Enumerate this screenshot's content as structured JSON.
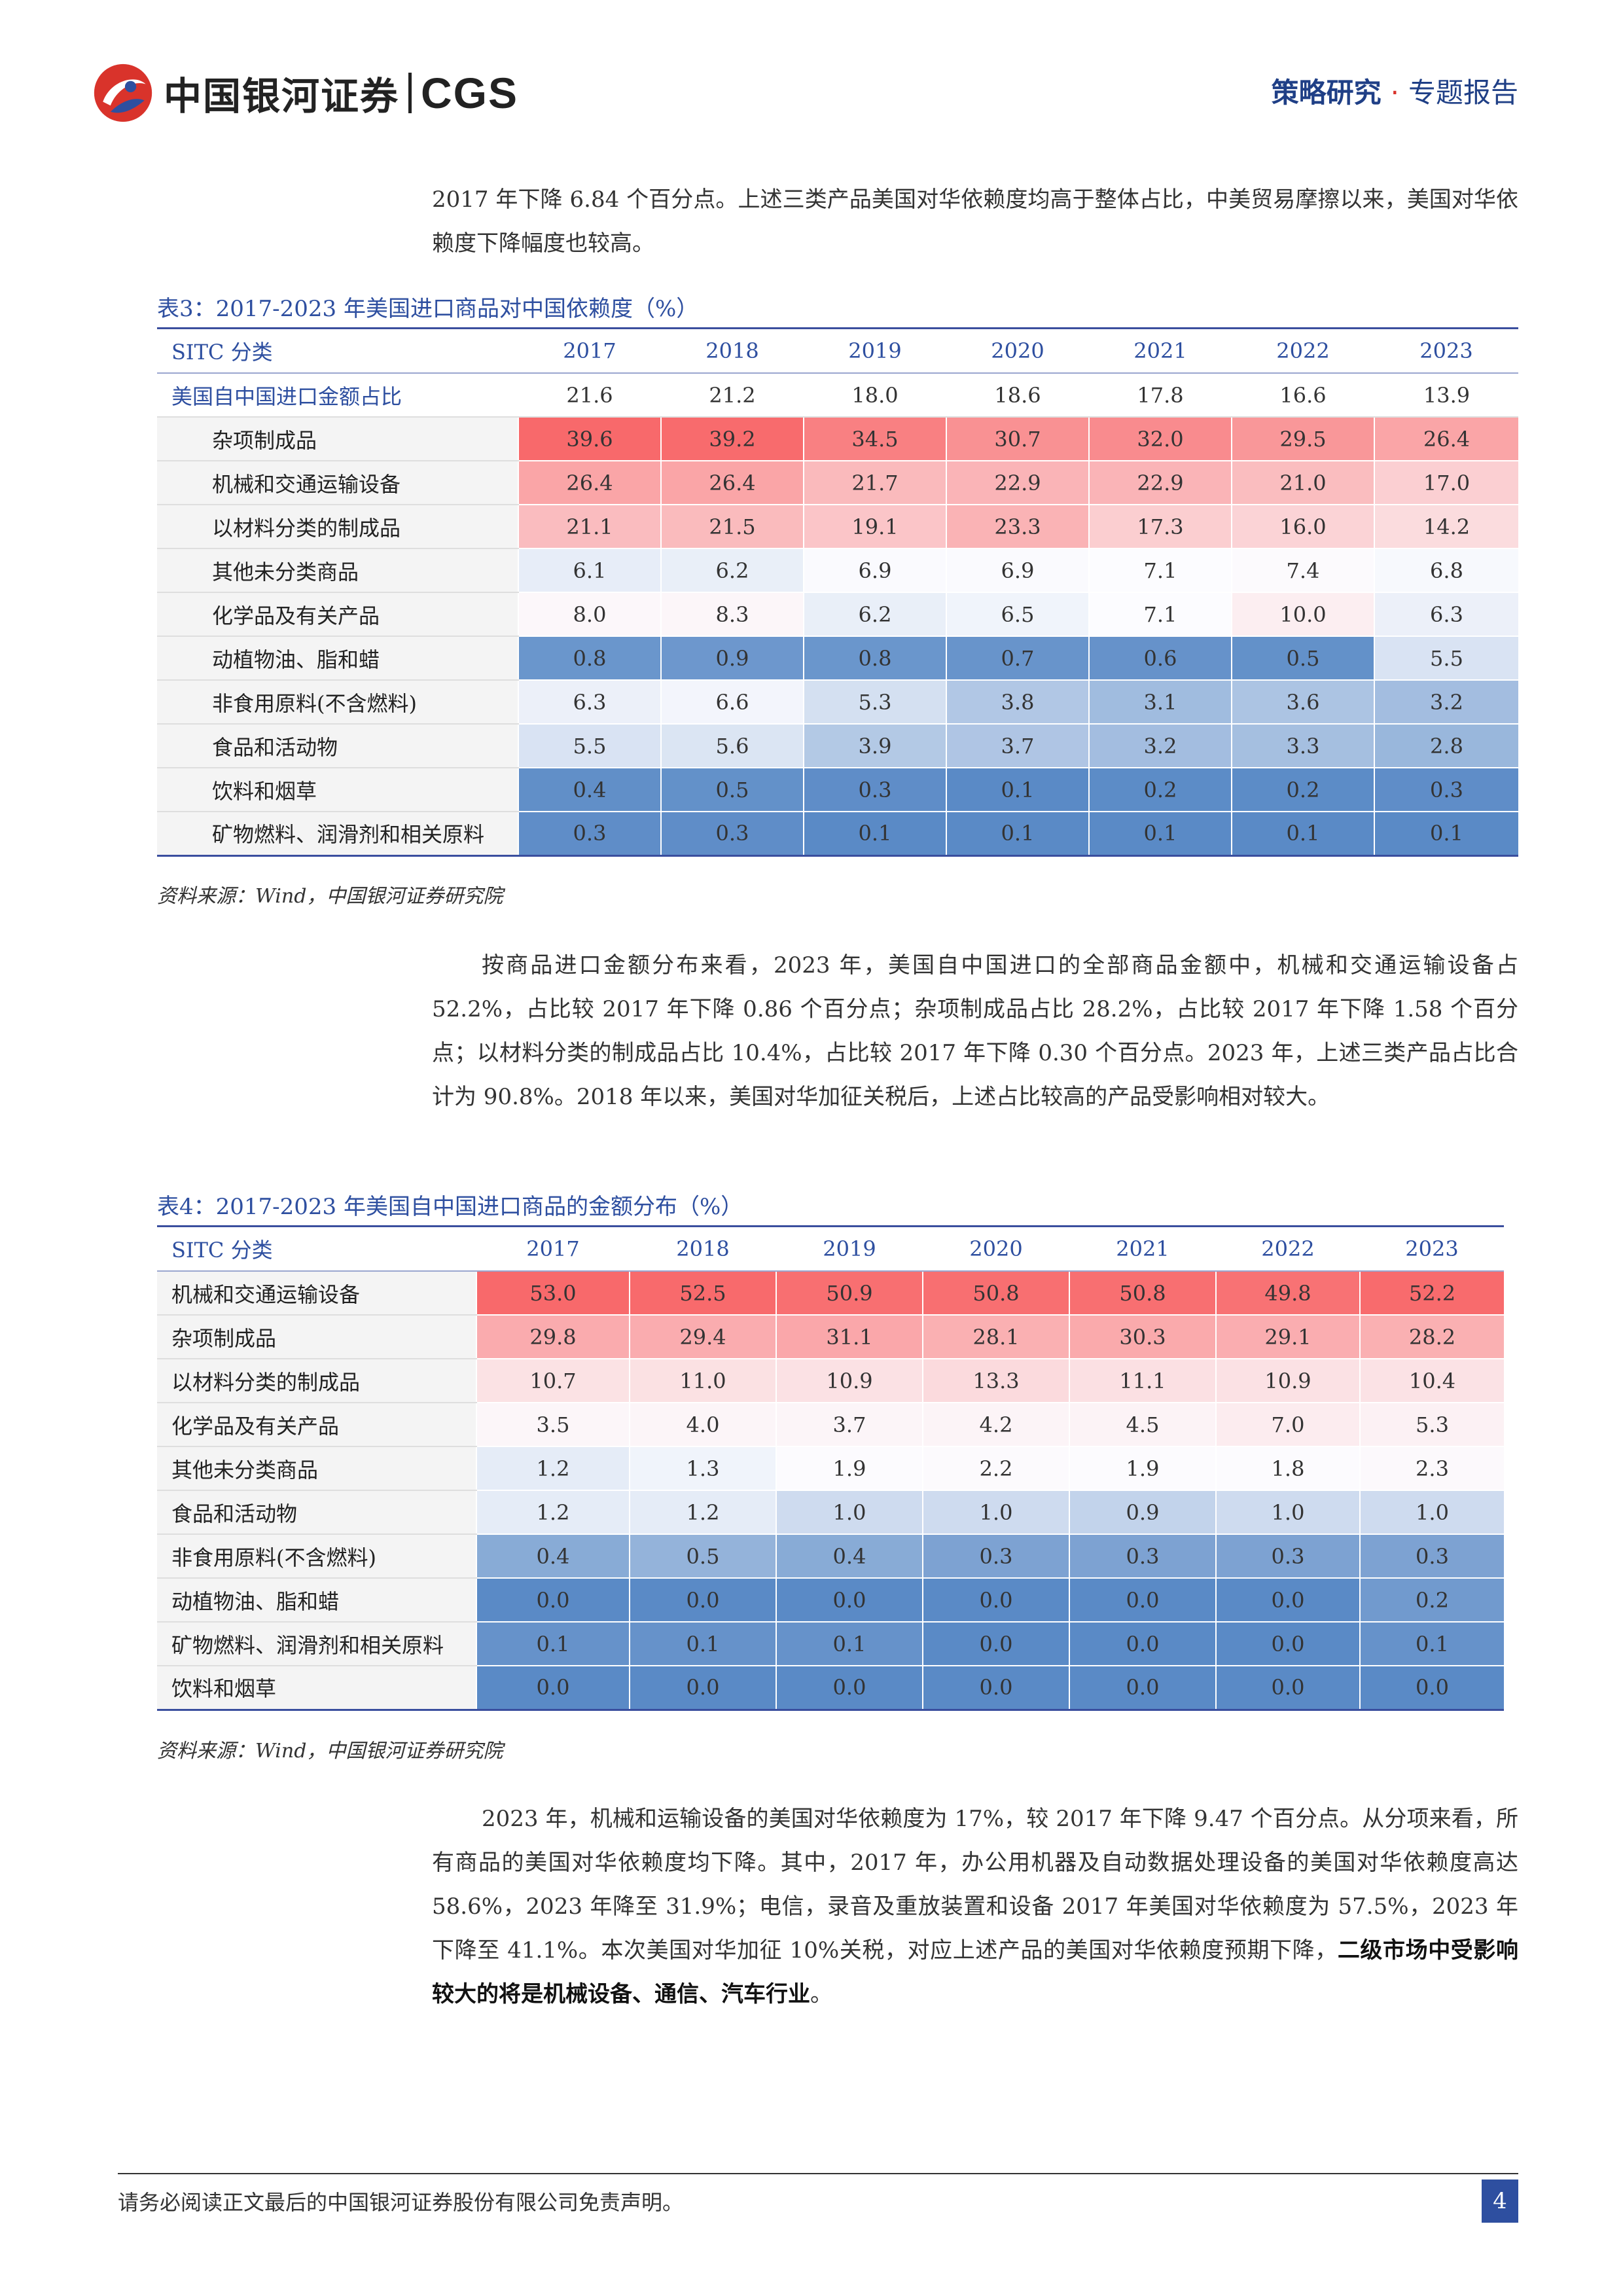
{
  "header": {
    "logo_cn": "中国银河证券",
    "logo_en": "CGS",
    "section": "策略研究",
    "section_sep": "·",
    "report_type": "专题报告"
  },
  "intro": {
    "text": "2017 年下降 6.84 个百分点。上述三类产品美国对华依赖度均高于整体占比，中美贸易摩擦以来，美国对华依赖度下降幅度也较高。"
  },
  "table3": {
    "title": "表3：2017-2023 年美国进口商品对中国依赖度（%）",
    "header": [
      "SITC 分类",
      "2017",
      "2018",
      "2019",
      "2020",
      "2021",
      "2022",
      "2023"
    ],
    "rows": [
      {
        "label": "美国自中国进口金额占比",
        "values": [
          "21.6",
          "21.2",
          "18.0",
          "18.6",
          "17.8",
          "16.6",
          "13.9"
        ]
      },
      {
        "label": "杂项制成品",
        "values": [
          "39.6",
          "39.2",
          "34.5",
          "30.7",
          "32.0",
          "29.5",
          "26.4"
        ]
      },
      {
        "label": "机械和交通运输设备",
        "values": [
          "26.4",
          "26.4",
          "21.7",
          "22.9",
          "22.9",
          "21.0",
          "17.0"
        ]
      },
      {
        "label": "以材料分类的制成品",
        "values": [
          "21.1",
          "21.5",
          "19.1",
          "23.3",
          "17.3",
          "16.0",
          "14.2"
        ]
      },
      {
        "label": "其他未分类商品",
        "values": [
          "6.1",
          "6.2",
          "6.9",
          "6.9",
          "7.1",
          "7.4",
          "6.8"
        ]
      },
      {
        "label": "化学品及有关产品",
        "values": [
          "8.0",
          "8.3",
          "6.2",
          "6.5",
          "7.1",
          "10.0",
          "6.3"
        ]
      },
      {
        "label": "动植物油、脂和蜡",
        "values": [
          "0.8",
          "0.9",
          "0.8",
          "0.7",
          "0.6",
          "0.5",
          "5.5"
        ]
      },
      {
        "label": "非食用原料(不含燃料)",
        "values": [
          "6.3",
          "6.6",
          "5.3",
          "3.8",
          "3.1",
          "3.6",
          "3.2"
        ]
      },
      {
        "label": "食品和活动物",
        "values": [
          "5.5",
          "5.6",
          "3.9",
          "3.7",
          "3.2",
          "3.3",
          "2.8"
        ]
      },
      {
        "label": "饮料和烟草",
        "values": [
          "0.4",
          "0.5",
          "0.3",
          "0.1",
          "0.2",
          "0.2",
          "0.3"
        ]
      },
      {
        "label": "矿物燃料、润滑剂和相关原料",
        "values": [
          "0.3",
          "0.3",
          "0.1",
          "0.1",
          "0.1",
          "0.1",
          "0.1"
        ]
      }
    ],
    "source": "资料来源：Wind，中国银河证券研究院"
  },
  "para2": {
    "text": "按商品进口金额分布来看，2023 年，美国自中国进口的全部商品金额中，机械和交通运输设备占 52.2%，占比较 2017 年下降 0.86 个百分点；杂项制成品占比 28.2%，占比较 2017 年下降 1.58 个百分点；以材料分类的制成品占比 10.4%，占比较 2017 年下降 0.30 个百分点。2023 年，上述三类产品占比合计为 90.8%。2018 年以来，美国对华加征关税后，上述占比较高的产品受影响相对较大。"
  },
  "table4": {
    "title": "表4：2017-2023 年美国自中国进口商品的金额分布（%）",
    "header": [
      "SITC 分类",
      "2017",
      "2018",
      "2019",
      "2020",
      "2021",
      "2022",
      "2023"
    ],
    "rows": [
      {
        "label": "机械和交通运输设备",
        "values": [
          "53.0",
          "52.5",
          "50.9",
          "50.8",
          "50.8",
          "49.8",
          "52.2"
        ]
      },
      {
        "label": "杂项制成品",
        "values": [
          "29.8",
          "29.4",
          "31.1",
          "28.1",
          "30.3",
          "29.1",
          "28.2"
        ]
      },
      {
        "label": "以材料分类的制成品",
        "values": [
          "10.7",
          "11.0",
          "10.9",
          "13.3",
          "11.1",
          "10.9",
          "10.4"
        ]
      },
      {
        "label": "化学品及有关产品",
        "values": [
          "3.5",
          "4.0",
          "3.7",
          "4.2",
          "4.5",
          "7.0",
          "5.3"
        ]
      },
      {
        "label": "其他未分类商品",
        "values": [
          "1.2",
          "1.3",
          "1.9",
          "2.2",
          "1.9",
          "1.8",
          "2.3"
        ]
      },
      {
        "label": "食品和活动物",
        "values": [
          "1.2",
          "1.2",
          "1.0",
          "1.0",
          "0.9",
          "1.0",
          "1.0"
        ]
      },
      {
        "label": "非食用原料(不含燃料)",
        "values": [
          "0.4",
          "0.5",
          "0.4",
          "0.3",
          "0.3",
          "0.3",
          "0.3"
        ]
      },
      {
        "label": "动植物油、脂和蜡",
        "values": [
          "0.0",
          "0.0",
          "0.0",
          "0.0",
          "0.0",
          "0.0",
          "0.2"
        ]
      },
      {
        "label": "矿物燃料、润滑剂和相关原料",
        "values": [
          "0.1",
          "0.1",
          "0.1",
          "0.0",
          "0.0",
          "0.0",
          "0.1"
        ]
      },
      {
        "label": "饮料和烟草",
        "values": [
          "0.0",
          "0.0",
          "0.0",
          "0.0",
          "0.0",
          "0.0",
          "0.0"
        ]
      }
    ],
    "source": "资料来源：Wind，中国银河证券研究院"
  },
  "para3": {
    "text": "2023 年，机械和运输设备的美国对华依赖度为 17%，较 2017 年下降 9.47 个百分点。从分项来看，所有商品的美国对华依赖度均下降。其中，2017 年，办公用机器及自动数据处理设备的美国对华依赖度高达 58.6%，2023 年降至 31.9%；电信，录音及重放装置和设备 2017 年美国对华依赖度为 57.5%，2023 年下降至 41.1%。本次美国对华加征 10%关税，对应上述产品的美国对华依赖度预期下降，",
    "bold": "二级市场中受影响较大的将是机械设备、通信、汽车行业",
    "tail": "。"
  },
  "footer": {
    "disclaimer": "请务必阅读正文最后的中国银河证券股份有限公司免责声明。",
    "page": "4"
  },
  "colors": {
    "brand_blue": "#2e4fa0",
    "brand_red": "#d9332b",
    "heat_high": "#f8696b",
    "heat_mid": "#fcfcff",
    "heat_low": "#5a8ac6"
  }
}
